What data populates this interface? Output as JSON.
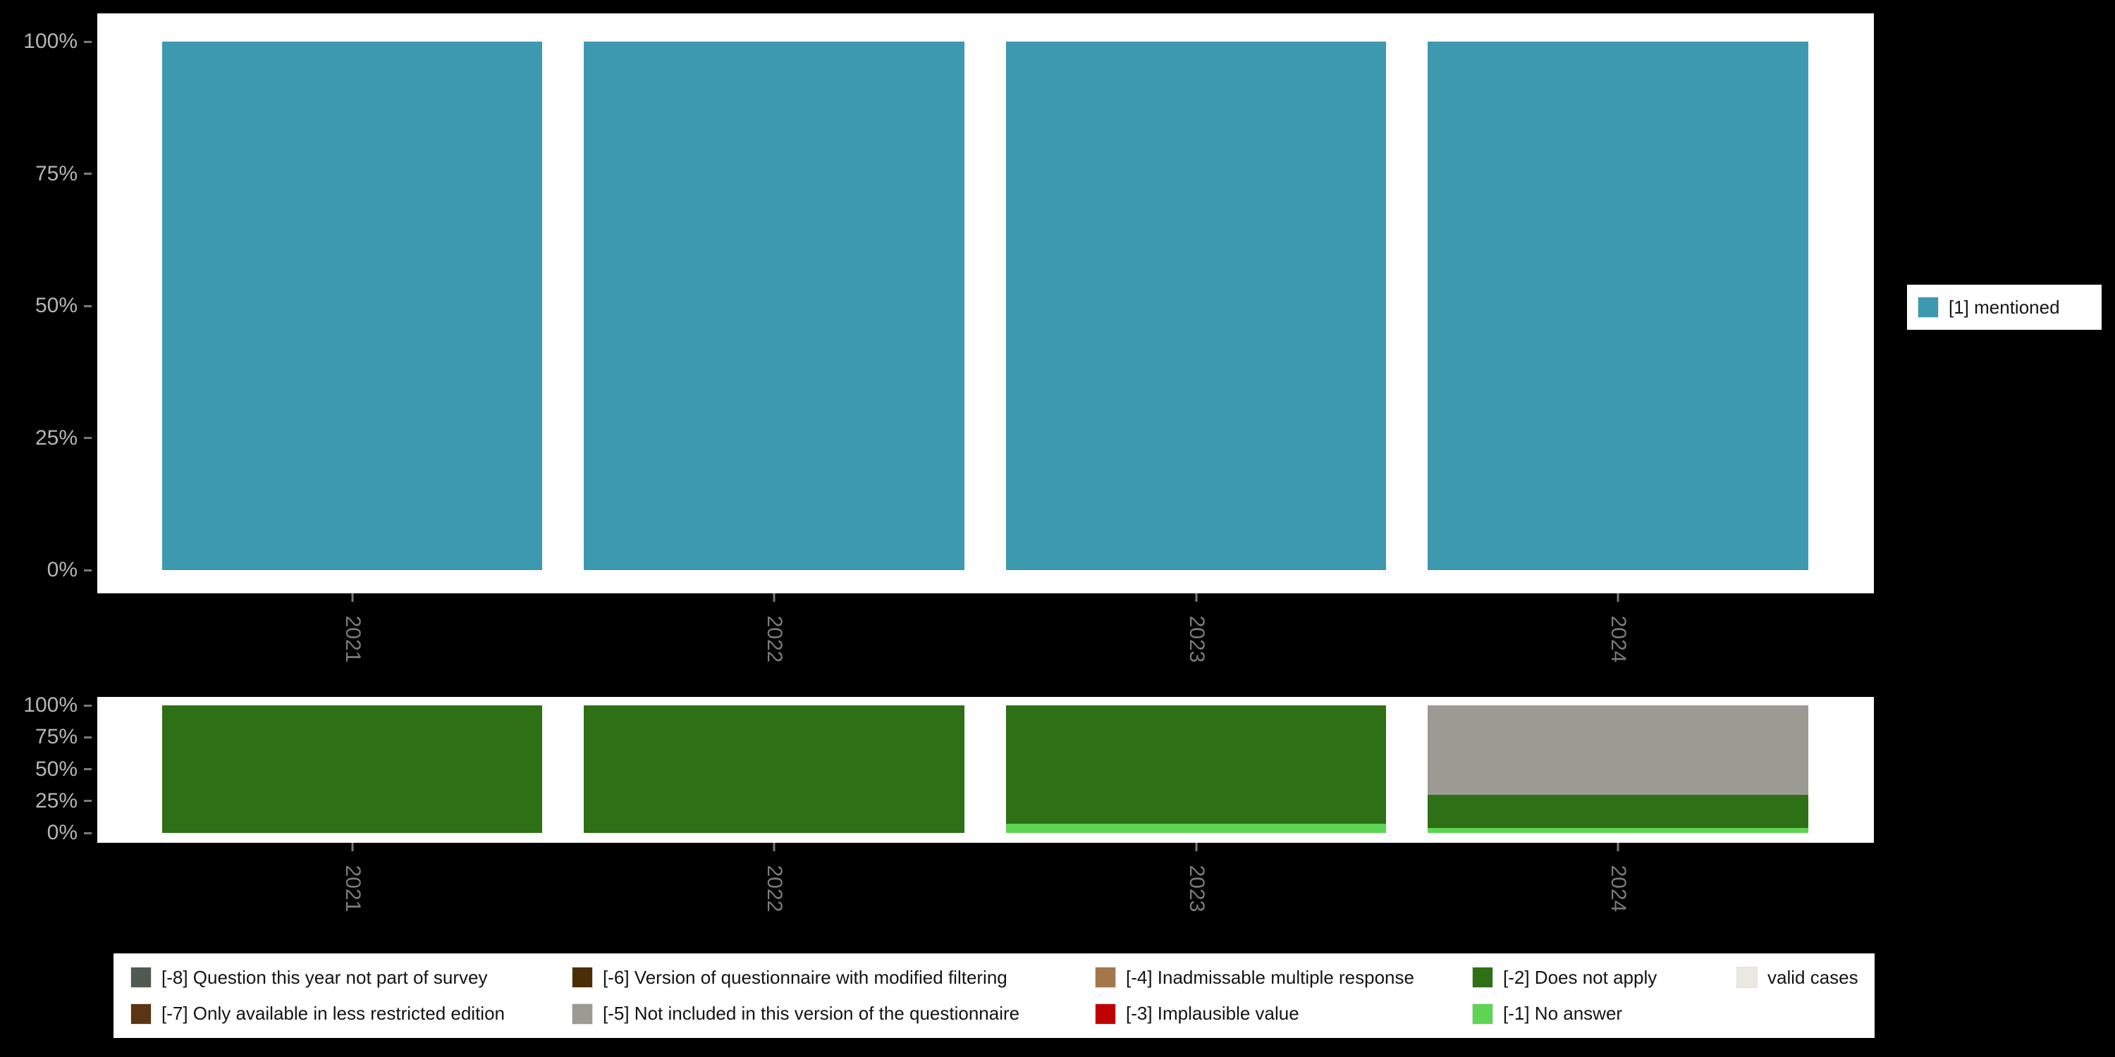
{
  "background_color": "#000000",
  "accent_color": "#3D99B0",
  "axis": {
    "tick_label_color": "#b5b5b5",
    "category_label_color": "#7c7c7c"
  },
  "legend_top": {
    "items": [
      {
        "label": "[1] mentioned",
        "color": "#3D99B0"
      }
    ]
  },
  "legend_bottom": {
    "rows": [
      [
        {
          "label": "[-8] Question this year not part of survey",
          "color": "#4F5B52"
        },
        {
          "label": "[-6] Version of questionnaire with modified filtering",
          "color": "#4A2E06"
        },
        {
          "label": "[-4] Inadmissable multiple response",
          "color": "#A3764B"
        },
        {
          "label": "[-2] Does not apply",
          "color": "#2D7016"
        },
        {
          "label": "valid cases",
          "color": "#E9E9E1"
        }
      ],
      [
        {
          "label": "[-7] Only available in less restricted edition",
          "color": "#5A3413"
        },
        {
          "label": "[-5] Not included in this version of the questionnaire",
          "color": "#9B9B93"
        },
        {
          "label": "[-3] Implausible value",
          "color": "#C00000"
        },
        {
          "label": "[-1] No answer",
          "color": "#5ED555"
        }
      ]
    ]
  },
  "chart_data": [
    {
      "type": "bar",
      "title": "",
      "xlabel": "",
      "ylabel": "",
      "ylim": [
        0,
        100
      ],
      "grid": false,
      "legend_position": "right",
      "categories": [
        "2021",
        "2022",
        "2023",
        "2024"
      ],
      "yticks": [
        {
          "value": 100,
          "label": "100%"
        },
        {
          "value": 75,
          "label": "75%"
        },
        {
          "value": 50,
          "label": "50%"
        },
        {
          "value": 25,
          "label": "25%"
        },
        {
          "value": 0,
          "label": "0%"
        }
      ],
      "series": [
        {
          "name": "[1] mentioned",
          "color": "#3D99B0",
          "values": [
            100,
            100,
            100,
            100
          ]
        }
      ]
    },
    {
      "type": "bar",
      "stacked": true,
      "title": "",
      "xlabel": "",
      "ylabel": "",
      "ylim": [
        0,
        100
      ],
      "grid": false,
      "legend_position": "bottom",
      "categories": [
        "2021",
        "2022",
        "2023",
        "2024"
      ],
      "yticks": [
        {
          "value": 100,
          "label": "100%"
        },
        {
          "value": 75,
          "label": "75%"
        },
        {
          "value": 50,
          "label": "50%"
        },
        {
          "value": 25,
          "label": "25%"
        },
        {
          "value": 0,
          "label": "0%"
        }
      ],
      "series": [
        {
          "name": "[-1] No answer",
          "color": "#5ED555",
          "values": [
            0,
            0,
            7,
            4
          ]
        },
        {
          "name": "[-2] Does not apply",
          "color": "#2D7016",
          "values": [
            100,
            100,
            93,
            26
          ]
        },
        {
          "name": "[-5] Not included in this version of the questionnaire",
          "color": "#9B9B93",
          "values": [
            0,
            0,
            0,
            70
          ]
        }
      ]
    }
  ]
}
